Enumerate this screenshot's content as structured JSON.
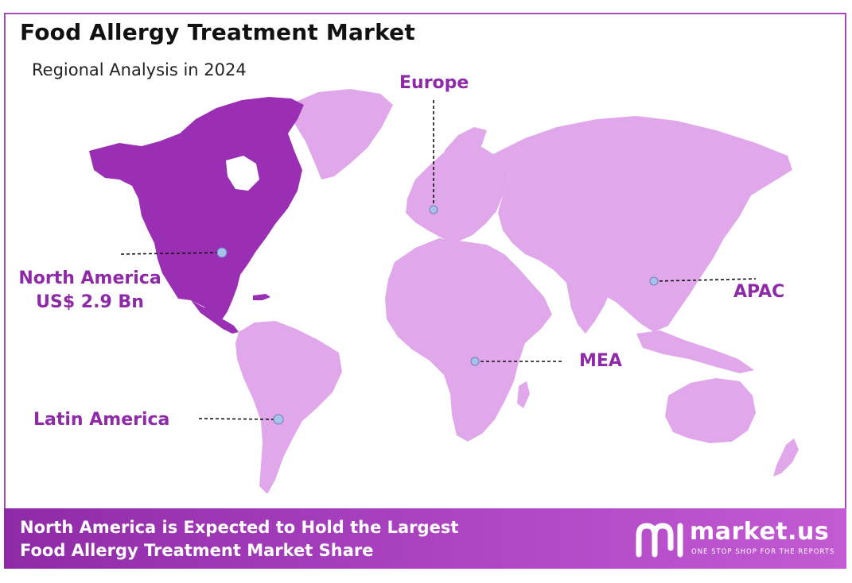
{
  "title": "Food Allergy Treatment Market",
  "subtitle": "Regional Analysis in 2024",
  "regions": {
    "north_america": {
      "name": "North America",
      "value": "US$ 2.9 Bn",
      "highlighted": true
    },
    "europe": {
      "name": "Europe"
    },
    "apac": {
      "name": "APAC"
    },
    "mea": {
      "name": "MEA"
    },
    "latin_america": {
      "name": "Latin America"
    }
  },
  "footer": {
    "line1": "North America is Expected to Hold the Largest",
    "line2": "Food Allergy Treatment Market Share"
  },
  "brand": {
    "name": "market.us",
    "tagline": "ONE STOP SHOP FOR THE REPORTS"
  },
  "colors": {
    "accent": "#8e2aa8",
    "land": "#e0a8ea",
    "highlight": "#9a2fb4",
    "marker": "#a9c0e8",
    "footer": "#a23fbc"
  }
}
